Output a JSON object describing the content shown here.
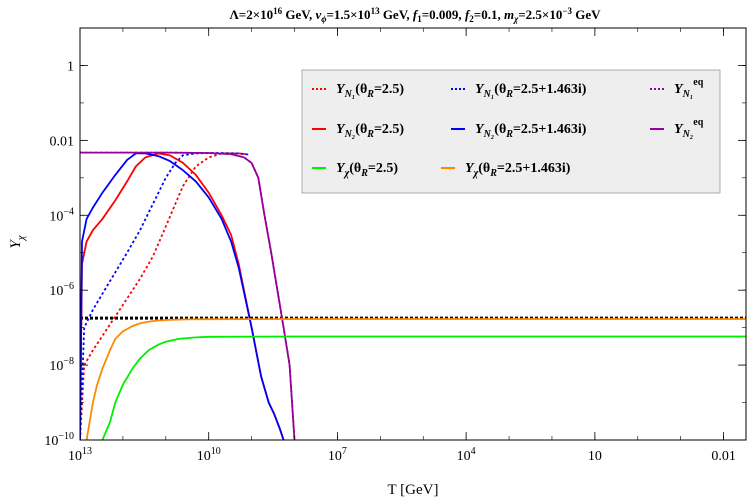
{
  "chart_data": {
    "type": "line",
    "title": "Λ=2×10¹⁶ GeV, v_ϕ=1.5×10¹³ GeV, f₁=0.009, f₂=0.1, m_χ=2.5×10⁻³ GeV",
    "title_parts": {
      "lambda": "Λ=2×10",
      "lambda_exp": "16",
      "lambda_unit": " GeV,  ",
      "v": "v",
      "v_sub": "ϕ",
      "v_val": "=1.5×10",
      "v_exp": "13",
      "v_unit": " GeV,  ",
      "f1": "f",
      "f1_sub": "1",
      "f1_val": "=0.009,  ",
      "f2": "f",
      "f2_sub": "2",
      "f2_val": "=0.1,  ",
      "m": "m",
      "m_sub": "χ",
      "m_val": "=2.5×10",
      "m_exp": "−3",
      "m_unit": " GeV"
    },
    "xlabel": "T [GeV]",
    "ylabel": "Y",
    "ylabel_sub": "χ",
    "x_scale": "log, decreasing left to right",
    "y_scale": "log",
    "xlim": [
      10000000000000.0,
      0.003
    ],
    "ylim": [
      1e-10,
      10
    ],
    "x_ticks": [
      {
        "value": 10000000000000.0,
        "base": "10",
        "exp": "13"
      },
      {
        "value": 10000000000.0,
        "base": "10",
        "exp": "10"
      },
      {
        "value": 10000000.0,
        "base": "10",
        "exp": "7"
      },
      {
        "value": 10000.0,
        "base": "10",
        "exp": "4"
      },
      {
        "value": 10,
        "base": "10",
        "exp": ""
      },
      {
        "value": 0.01,
        "base": "0.01",
        "exp": ""
      }
    ],
    "y_ticks": [
      {
        "value": 1e-10,
        "base": "10",
        "exp": "−10"
      },
      {
        "value": 1e-08,
        "base": "10",
        "exp": "−8"
      },
      {
        "value": 1e-06,
        "base": "10",
        "exp": "−6"
      },
      {
        "value": 0.0001,
        "base": "10",
        "exp": "−4"
      },
      {
        "value": 0.01,
        "base": "0.01",
        "exp": ""
      },
      {
        "value": 1,
        "base": "1",
        "exp": ""
      }
    ],
    "legend_placement": "top-right inside plot",
    "series": [
      {
        "label_main": "Y",
        "label_sub": "N₁",
        "label_rest": "(θ",
        "label_sub2": "R",
        "label_end": "=2.5)",
        "color": "#ff0000",
        "dash": "dotted",
        "x": [
          10000000000000.0,
          8000000000000.0,
          5000000000000.0,
          3000000000000.0,
          1500000000000.0,
          800000000000.0,
          400000000000.0,
          200000000000.0,
          100000000000.0,
          60000000000.0,
          40000000000.0,
          20000000000.0,
          10000000000.0,
          5000000000.0,
          2000000000.0,
          1200000000.0
        ],
        "y": [
          1e-10,
          1e-08,
          2.5e-08,
          6e-08,
          2e-07,
          6e-07,
          2e-06,
          8e-06,
          5e-05,
          0.0002,
          0.0006,
          0.002,
          0.0035,
          0.0045,
          0.0045,
          0.0042
        ]
      },
      {
        "label_main": "Y",
        "label_sub": "N₁",
        "label_rest": "(θ",
        "label_sub2": "R",
        "label_end": "=2.5+1.463i)",
        "color": "#0000ff",
        "dash": "dotted",
        "x": [
          10000000000000.0,
          8000000000000.0,
          5000000000000.0,
          3000000000000.0,
          1500000000000.0,
          800000000000.0,
          400000000000.0,
          200000000000.0,
          100000000000.0,
          60000000000.0,
          40000000000.0,
          20000000000.0,
          10000000000.0,
          5000000000.0,
          2000000000.0,
          1200000000.0
        ],
        "y": [
          1e-10,
          1e-07,
          3e-07,
          8e-07,
          3e-06,
          1e-05,
          4e-05,
          0.0002,
          0.001,
          0.0025,
          0.004,
          0.0045,
          0.0046,
          0.0046,
          0.0045,
          0.0042
        ]
      },
      {
        "label_main": "Y",
        "label_sub": "N₁",
        "label_sup": "eq",
        "color": "#990099",
        "dash": "dotted",
        "x": [
          10000000000000.0,
          1000000000000.0,
          100000000000.0,
          10000000000.0,
          3000000000.0,
          1500000000.0,
          1000000000.0,
          700000000.0,
          500000000.0,
          350000000.0,
          250000000.0,
          180000000.0,
          130000000.0,
          100000000.0
        ],
        "y": [
          0.0047,
          0.0047,
          0.0047,
          0.0046,
          0.0043,
          0.0035,
          0.0025,
          0.001,
          0.0001,
          1e-05,
          1e-06,
          1e-07,
          1e-08,
          1e-10
        ]
      },
      {
        "label_main": "Y",
        "label_sub": "N₂",
        "label_rest": "(θ",
        "label_sub2": "R",
        "label_end": "=2.5)",
        "color": "#ff0000",
        "dash": "solid",
        "x": [
          10000000000000.0,
          9000000000000.0,
          7000000000000.0,
          5000000000000.0,
          3000000000000.0,
          1500000000000.0,
          800000000000.0,
          500000000000.0,
          300000000000.0,
          150000000000.0,
          80000000000.0,
          40000000000.0,
          20000000000.0,
          10000000000.0,
          5000000000.0,
          3000000000.0,
          2000000000.0,
          1000000000.0,
          600000000.0,
          400000000.0,
          300000000.0,
          220000000.0,
          180000000.0
        ],
        "y": [
          1e-10,
          5e-06,
          2e-05,
          4e-05,
          8e-05,
          0.00025,
          0.0008,
          0.002,
          0.0035,
          0.0045,
          0.004,
          0.0025,
          0.0012,
          0.0004,
          0.0001,
          3e-05,
          5e-06,
          1e-07,
          5e-09,
          1e-09,
          5e-10,
          2e-10,
          1e-10
        ]
      },
      {
        "label_main": "Y",
        "label_sub": "N₂",
        "label_rest": "(θ",
        "label_sub2": "R",
        "label_end": "=2.5+1.463i)",
        "color": "#0000ff",
        "dash": "solid",
        "x": [
          10000000000000.0,
          9000000000000.0,
          7000000000000.0,
          5000000000000.0,
          3000000000000.0,
          1500000000000.0,
          800000000000.0,
          500000000000.0,
          300000000000.0,
          150000000000.0,
          80000000000.0,
          40000000000.0,
          20000000000.0,
          10000000000.0,
          5000000000.0,
          3000000000.0,
          2000000000.0,
          1000000000.0,
          600000000.0,
          400000000.0,
          300000000.0,
          220000000.0,
          180000000.0
        ],
        "y": [
          1e-10,
          2e-05,
          8e-05,
          0.00016,
          0.0004,
          0.0012,
          0.003,
          0.0045,
          0.0045,
          0.0038,
          0.0028,
          0.0016,
          0.0008,
          0.0003,
          8e-05,
          2e-05,
          4e-06,
          1e-07,
          5e-09,
          1e-09,
          5e-10,
          2e-10,
          1e-10
        ]
      },
      {
        "label_main": "Y",
        "label_sub": "N₂",
        "label_sup": "eq",
        "color": "#990099",
        "dash": "solid",
        "x": [
          10000000000000.0,
          1000000000000.0,
          100000000000.0,
          10000000000.0,
          3000000000.0,
          1500000000.0,
          1000000000.0,
          700000000.0,
          500000000.0,
          350000000.0,
          250000000.0,
          180000000.0,
          130000000.0,
          100000000.0
        ],
        "y": [
          0.0047,
          0.0047,
          0.0047,
          0.0046,
          0.0043,
          0.0035,
          0.0025,
          0.001,
          0.0001,
          1e-05,
          1e-06,
          1e-07,
          1e-08,
          1e-10
        ]
      },
      {
        "label_main": "Y",
        "label_sub": "χ",
        "label_rest": "(θ",
        "label_sub2": "R",
        "label_end": "=2.5)",
        "color": "#00ee00",
        "dash": "solid",
        "x": [
          3000000000000.0,
          2000000000000.0,
          1500000000000.0,
          1000000000000.0,
          600000000000.0,
          400000000000.0,
          250000000000.0,
          150000000000.0,
          100000000000.0,
          50000000000.0,
          20000000000.0,
          10000000000.0,
          100000000.0,
          100000.0,
          100,
          0.003
        ],
        "y": [
          1e-10,
          3e-10,
          1e-09,
          3e-09,
          8e-09,
          1.5e-08,
          2.5e-08,
          3.5e-08,
          4.2e-08,
          5e-08,
          5.5e-08,
          5.7e-08,
          5.8e-08,
          5.8e-08,
          5.8e-08,
          5.8e-08
        ]
      },
      {
        "label_main": "Y",
        "label_sub": "χ",
        "label_rest": "(θ",
        "label_sub2": "R",
        "label_end": "=2.5+1.463i)",
        "color": "#ff8800",
        "dash": "solid",
        "x": [
          7000000000000.0,
          5000000000000.0,
          4000000000000.0,
          3000000000000.0,
          2000000000000.0,
          1500000000000.0,
          1000000000000.0,
          600000000000.0,
          400000000000.0,
          250000000000.0,
          150000000000.0,
          80000000000.0,
          30000000000.0,
          10000000000.0,
          100000000.0,
          100000.0,
          100,
          0.003
        ],
        "y": [
          1e-10,
          1e-09,
          3e-09,
          8e-09,
          2.5e-08,
          5e-08,
          8e-08,
          1.1e-07,
          1.3e-07,
          1.45e-07,
          1.55e-07,
          1.62e-07,
          1.66e-07,
          1.68e-07,
          1.7e-07,
          1.7e-07,
          1.7e-07,
          1.7e-07
        ]
      }
    ],
    "reference_line": {
      "y": 1.8e-07,
      "color": "#000000",
      "dash": "dotted"
    }
  }
}
